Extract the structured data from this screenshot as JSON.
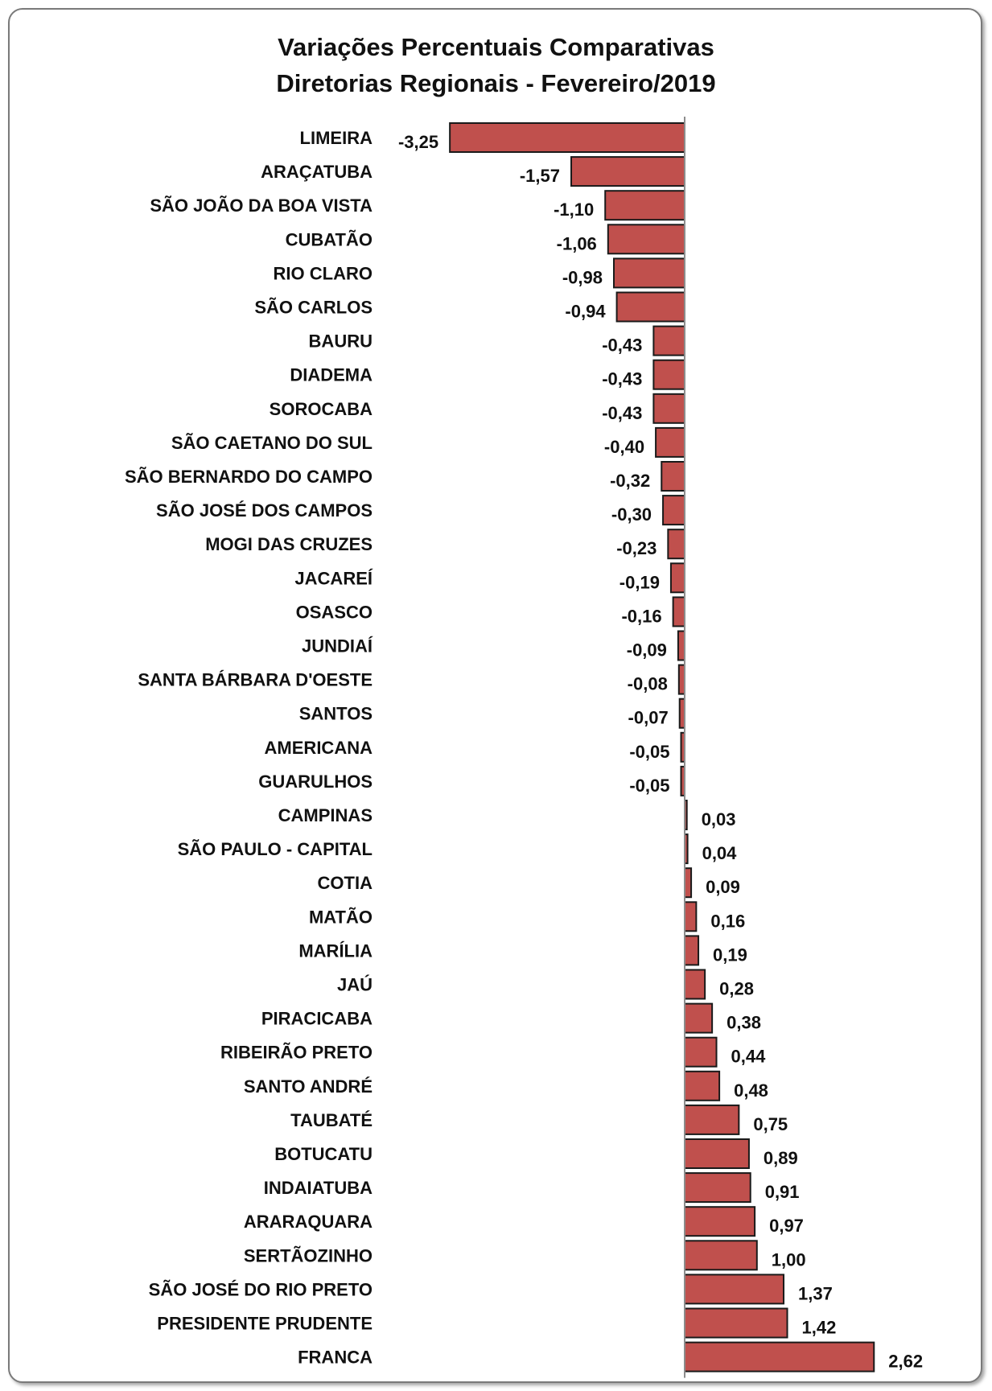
{
  "chart_data": {
    "type": "bar",
    "orientation": "horizontal",
    "title": "Variações Percentuais Comparativas",
    "subtitle": "Diretorias Regionais - Fevereiro/2019",
    "categories": [
      "LIMEIRA",
      "ARAÇATUBA",
      "SÃO JOÃO DA BOA VISTA",
      "CUBATÃO",
      "RIO CLARO",
      "SÃO CARLOS",
      "BAURU",
      "DIADEMA",
      "SOROCABA",
      "SÃO CAETANO DO SUL",
      "SÃO BERNARDO DO CAMPO",
      "SÃO JOSÉ DOS CAMPOS",
      "MOGI DAS CRUZES",
      "JACAREÍ",
      "OSASCO",
      "JUNDIAÍ",
      "SANTA BÁRBARA D'OESTE",
      "SANTOS",
      "AMERICANA",
      "GUARULHOS",
      "CAMPINAS",
      "SÃO PAULO - CAPITAL",
      "COTIA",
      "MATÃO",
      "MARÍLIA",
      "JAÚ",
      "PIRACICABA",
      "RIBEIRÃO PRETO",
      "SANTO ANDRÉ",
      "TAUBATÉ",
      "BOTUCATU",
      "INDAIATUBA",
      "ARARAQUARA",
      "SERTÃOZINHO",
      "SÃO JOSÉ DO RIO PRETO",
      "PRESIDENTE PRUDENTE",
      "FRANCA"
    ],
    "values": [
      -3.25,
      -1.57,
      -1.1,
      -1.06,
      -0.98,
      -0.94,
      -0.43,
      -0.43,
      -0.43,
      -0.4,
      -0.32,
      -0.3,
      -0.23,
      -0.19,
      -0.16,
      -0.09,
      -0.08,
      -0.07,
      -0.05,
      -0.05,
      0.03,
      0.04,
      0.09,
      0.16,
      0.19,
      0.28,
      0.38,
      0.44,
      0.48,
      0.75,
      0.89,
      0.91,
      0.97,
      1.0,
      1.37,
      1.42,
      2.62
    ],
    "data_labels": [
      "-3,25",
      "-1,57",
      "-1,10",
      "-1,06",
      "-0,98",
      "-0,94",
      "-0,43",
      "-0,43",
      "-0,43",
      "-0,40",
      "-0,32",
      "-0,30",
      "-0,23",
      "-0,19",
      "-0,16",
      "-0,09",
      "-0,08",
      "-0,07",
      "-0,05",
      "-0,05",
      "0,03",
      "0,04",
      "0,09",
      "0,16",
      "0,19",
      "0,28",
      "0,38",
      "0,44",
      "0,48",
      "0,75",
      "0,89",
      "0,91",
      "0,97",
      "1,00",
      "1,37",
      "1,42",
      "2,62"
    ],
    "bar_color": "#c0504d",
    "bar_edge_color": "#1a1a1a",
    "axis_color": "#8c8c8c",
    "grid": false,
    "legend": "none"
  }
}
